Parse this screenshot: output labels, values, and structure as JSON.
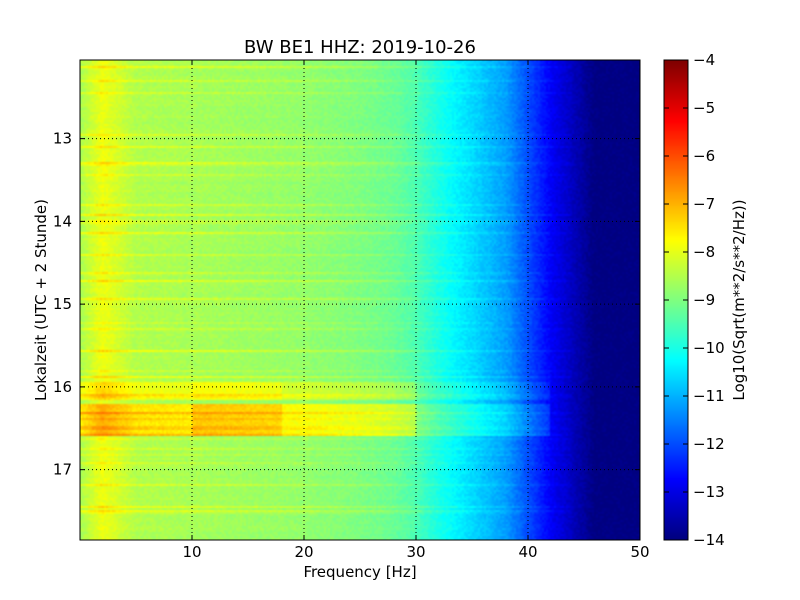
{
  "chart_data": {
    "type": "heatmap",
    "title": "BW BE1 HHZ: 2019-10-26",
    "xlabel": "Frequency [Hz]",
    "ylabel": "Lokalzeit (UTC + 2 Stunde)",
    "xlim": [
      0,
      50
    ],
    "ylim": [
      17.85,
      12.05
    ],
    "y_inverted": true,
    "xticks": [
      10,
      20,
      30,
      40,
      50
    ],
    "yticks": [
      13,
      14,
      15,
      16,
      17
    ],
    "grid": true,
    "colormap": "jet",
    "colorbar": {
      "label": "Log10(Sqrt(m**2/s**2/Hz))",
      "range": [
        -14,
        -4
      ],
      "ticks": [
        -4,
        -5,
        -6,
        -7,
        -8,
        -9,
        -10,
        -11,
        -12,
        -13,
        -14
      ]
    },
    "spectral_profile": {
      "frequency": [
        0,
        2,
        5,
        10,
        15,
        20,
        25,
        28,
        30,
        32,
        35,
        38,
        40,
        42,
        44,
        46,
        50
      ],
      "level": [
        -8.6,
        -7.9,
        -8.5,
        -8.6,
        -8.7,
        -8.8,
        -9.0,
        -9.2,
        -9.5,
        -10.0,
        -10.6,
        -11.2,
        -12.0,
        -12.8,
        -13.4,
        -14.0,
        -14.0
      ]
    },
    "events": [
      {
        "start": 16.2,
        "end": 16.6,
        "delta": 1.0
      },
      {
        "start": 15.95,
        "end": 16.15,
        "delta": 0.6
      }
    ]
  }
}
